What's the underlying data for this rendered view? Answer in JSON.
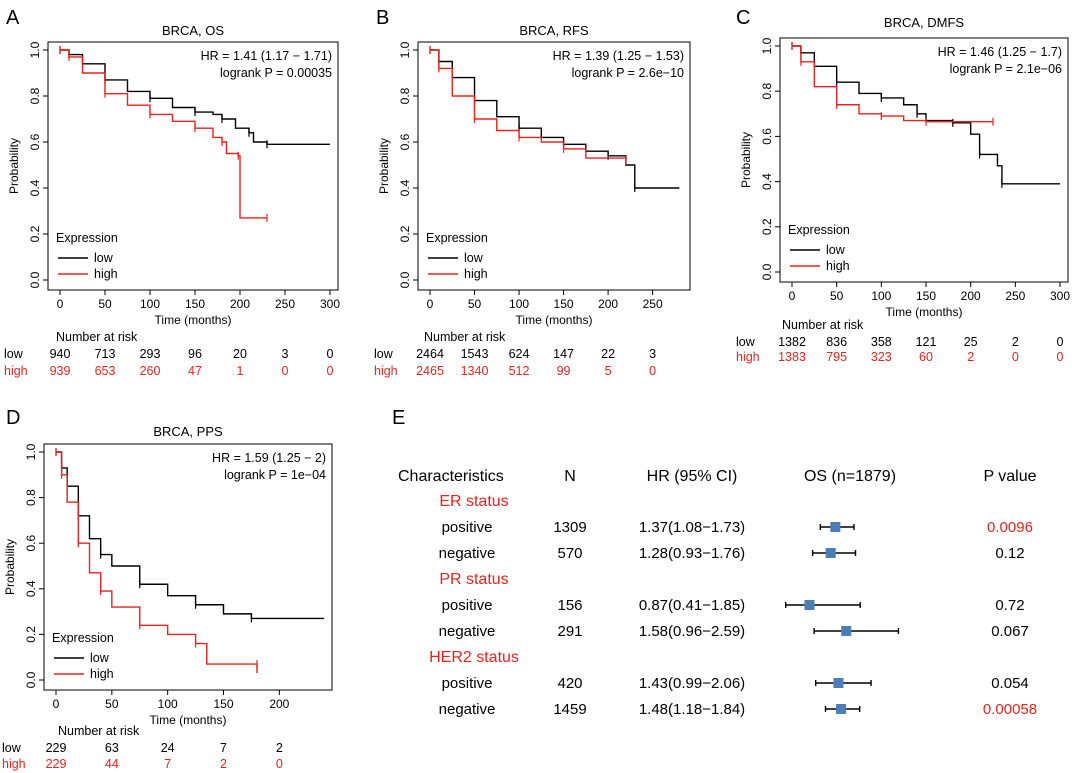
{
  "colors": {
    "low": "#000000",
    "high": "#e8231c",
    "marker": "#4a7eb5"
  },
  "km_panels": [
    {
      "letter": "A",
      "title": "BRCA, OS",
      "hr": "HR = 1.41 (1.17 − 1.71)",
      "logrank": "logrank P = 0.00035",
      "ylabel": "Probability",
      "xlabel": "Time (months)",
      "xticks": [
        0,
        50,
        100,
        150,
        200,
        250,
        300
      ],
      "yticks": [
        0.0,
        0.2,
        0.4,
        0.6,
        0.8,
        1.0
      ],
      "ytick_labels": [
        "0.0",
        "0.2",
        "0.4",
        "0.6",
        "0.8",
        "1.0"
      ],
      "xmax": 300,
      "legend_title": "Expression",
      "legend_low": "low",
      "legend_high": "high",
      "risk_title": "Number at risk",
      "risk_low_label": "low",
      "risk_high_label": "high",
      "risk_low": [
        "940",
        "713",
        "293",
        "96",
        "20",
        "3",
        "0"
      ],
      "risk_high": [
        "939",
        "653",
        "260",
        "47",
        "1",
        "0",
        "0"
      ],
      "series": [
        {
          "name": "low",
          "points": [
            [
              0,
              1
            ],
            [
              10,
              0.98
            ],
            [
              25,
              0.94
            ],
            [
              50,
              0.87
            ],
            [
              75,
              0.82
            ],
            [
              100,
              0.79
            ],
            [
              125,
              0.75
            ],
            [
              150,
              0.73
            ],
            [
              170,
              0.72
            ],
            [
              180,
              0.7
            ],
            [
              195,
              0.66
            ],
            [
              210,
              0.64
            ],
            [
              215,
              0.6
            ],
            [
              230,
              0.59
            ],
            [
              300,
              0.59
            ]
          ]
        },
        {
          "name": "high",
          "points": [
            [
              0,
              1
            ],
            [
              10,
              0.97
            ],
            [
              25,
              0.9
            ],
            [
              50,
              0.81
            ],
            [
              75,
              0.76
            ],
            [
              100,
              0.72
            ],
            [
              125,
              0.69
            ],
            [
              150,
              0.66
            ],
            [
              170,
              0.62
            ],
            [
              180,
              0.6
            ],
            [
              185,
              0.55
            ],
            [
              198,
              0.54
            ],
            [
              200,
              0.27
            ],
            [
              230,
              0.27
            ]
          ]
        }
      ]
    },
    {
      "letter": "B",
      "title": "BRCA, RFS",
      "hr": "HR = 1.39 (1.25 − 1.53)",
      "logrank": "logrank P = 2.6e−10",
      "ylabel": "Probability",
      "xlabel": "Time (months)",
      "xticks": [
        0,
        50,
        100,
        150,
        200,
        250
      ],
      "yticks": [
        0.0,
        0.2,
        0.4,
        0.6,
        0.8,
        1.0
      ],
      "ytick_labels": [
        "0.0",
        "0.2",
        "0.4",
        "0.6",
        "0.8",
        "1.0"
      ],
      "xmax": 283,
      "legend_title": "Expression",
      "legend_low": "low",
      "legend_high": "high",
      "risk_title": "Number at risk",
      "risk_low_label": "low",
      "risk_high_label": "high",
      "risk_low": [
        "2464",
        "1543",
        "624",
        "147",
        "22",
        "3"
      ],
      "risk_high": [
        "2465",
        "1340",
        "512",
        "99",
        "5",
        "0"
      ],
      "series": [
        {
          "name": "low",
          "points": [
            [
              0,
              1
            ],
            [
              10,
              0.95
            ],
            [
              25,
              0.88
            ],
            [
              50,
              0.78
            ],
            [
              75,
              0.71
            ],
            [
              100,
              0.66
            ],
            [
              125,
              0.62
            ],
            [
              150,
              0.59
            ],
            [
              175,
              0.56
            ],
            [
              200,
              0.54
            ],
            [
              220,
              0.5
            ],
            [
              230,
              0.4
            ],
            [
              280,
              0.4
            ]
          ]
        },
        {
          "name": "high",
          "points": [
            [
              0,
              1
            ],
            [
              10,
              0.92
            ],
            [
              25,
              0.8
            ],
            [
              50,
              0.7
            ],
            [
              75,
              0.65
            ],
            [
              100,
              0.62
            ],
            [
              125,
              0.6
            ],
            [
              150,
              0.57
            ],
            [
              175,
              0.53
            ],
            [
              220,
              0.52
            ]
          ]
        }
      ]
    },
    {
      "letter": "C",
      "title": "BRCA, DMFS",
      "hr": "HR = 1.46 (1.25 − 1.7)",
      "logrank": "logrank P = 2.1e−06",
      "ylabel": "Probability",
      "xlabel": "Time (months)",
      "xticks": [
        0,
        50,
        100,
        150,
        200,
        250,
        300
      ],
      "yticks": [
        0.0,
        0.2,
        0.4,
        0.6,
        0.8,
        1.0
      ],
      "ytick_labels": [
        "0.0",
        "0.2",
        "0.4",
        "0.6",
        "0.8",
        "1.0"
      ],
      "xmax": 300,
      "legend_title": "Expression",
      "legend_low": "low",
      "legend_high": "high",
      "risk_title": "Number at risk",
      "risk_low_label": "low",
      "risk_high_label": "high",
      "risk_low": [
        "1382",
        "836",
        "358",
        "121",
        "25",
        "2",
        "0"
      ],
      "risk_high": [
        "1383",
        "795",
        "323",
        "60",
        "2",
        "0",
        "0"
      ],
      "series": [
        {
          "name": "low",
          "points": [
            [
              0,
              1
            ],
            [
              10,
              0.97
            ],
            [
              25,
              0.91
            ],
            [
              50,
              0.84
            ],
            [
              75,
              0.79
            ],
            [
              100,
              0.77
            ],
            [
              125,
              0.74
            ],
            [
              140,
              0.7
            ],
            [
              150,
              0.67
            ],
            [
              180,
              0.66
            ],
            [
              200,
              0.61
            ],
            [
              210,
              0.52
            ],
            [
              230,
              0.47
            ],
            [
              235,
              0.39
            ],
            [
              300,
              0.39
            ]
          ]
        },
        {
          "name": "high",
          "points": [
            [
              0,
              1
            ],
            [
              10,
              0.93
            ],
            [
              25,
              0.82
            ],
            [
              50,
              0.74
            ],
            [
              75,
              0.7
            ],
            [
              100,
              0.69
            ],
            [
              125,
              0.67
            ],
            [
              150,
              0.665
            ],
            [
              200,
              0.665
            ],
            [
              225,
              0.665
            ]
          ]
        }
      ]
    },
    {
      "letter": "D",
      "title": "BRCA, PPS",
      "hr": "HR = 1.59 (1.25 − 2)",
      "logrank": "logrank P = 1e−04",
      "ylabel": "Probability",
      "xlabel": "Time (months)",
      "xticks": [
        0,
        50,
        100,
        150,
        200
      ],
      "yticks": [
        0.0,
        0.2,
        0.4,
        0.6,
        0.8,
        1.0
      ],
      "ytick_labels": [
        "0.0",
        "0.2",
        "0.4",
        "0.6",
        "0.8",
        "1.0"
      ],
      "xmax": 240,
      "legend_title": "Expression",
      "legend_low": "low",
      "legend_high": "high",
      "risk_title": "Number at risk",
      "risk_low_label": "low",
      "risk_high_label": "high",
      "risk_low": [
        "229",
        "63",
        "24",
        "7",
        "2"
      ],
      "risk_high": [
        "229",
        "44",
        "7",
        "2",
        "0"
      ],
      "series": [
        {
          "name": "low",
          "points": [
            [
              0,
              1
            ],
            [
              5,
              0.93
            ],
            [
              10,
              0.85
            ],
            [
              20,
              0.72
            ],
            [
              30,
              0.62
            ],
            [
              40,
              0.55
            ],
            [
              50,
              0.5
            ],
            [
              75,
              0.42
            ],
            [
              100,
              0.37
            ],
            [
              125,
              0.33
            ],
            [
              150,
              0.29
            ],
            [
              175,
              0.27
            ],
            [
              240,
              0.27
            ]
          ]
        },
        {
          "name": "high",
          "points": [
            [
              0,
              1
            ],
            [
              5,
              0.9
            ],
            [
              10,
              0.78
            ],
            [
              20,
              0.6
            ],
            [
              30,
              0.47
            ],
            [
              40,
              0.39
            ],
            [
              50,
              0.32
            ],
            [
              75,
              0.24
            ],
            [
              100,
              0.2
            ],
            [
              125,
              0.16
            ],
            [
              135,
              0.07
            ],
            [
              180,
              0.07
            ],
            [
              180,
              0.03
            ]
          ]
        }
      ]
    }
  ],
  "forest": {
    "letter": "E",
    "headers": {
      "characteristics": "Characteristics",
      "n": "N",
      "hr": "HR (95% CI)",
      "os": "OS (n=1879)",
      "p": "P value"
    },
    "xrange": [
      0.3,
      3.2
    ],
    "groups": [
      {
        "label": "ER status",
        "rows": [
          {
            "label": "positive",
            "n": "1309",
            "hr_text": "1.37(1.08−1.73)",
            "hr": 1.37,
            "lo": 1.08,
            "hi": 1.73,
            "p": "0.0096",
            "significant": true
          },
          {
            "label": "negative",
            "n": "570",
            "hr_text": "1.28(0.93−1.76)",
            "hr": 1.28,
            "lo": 0.93,
            "hi": 1.76,
            "p": "0.12",
            "significant": false
          }
        ]
      },
      {
        "label": "PR status",
        "rows": [
          {
            "label": "positive",
            "n": "156",
            "hr_text": "0.87(0.41−1.85)",
            "hr": 0.87,
            "lo": 0.41,
            "hi": 1.85,
            "p": "0.72",
            "significant": false
          },
          {
            "label": "negative",
            "n": "291",
            "hr_text": "1.58(0.96−2.59)",
            "hr": 1.58,
            "lo": 0.96,
            "hi": 2.59,
            "p": "0.067",
            "significant": false
          }
        ]
      },
      {
        "label": "HER2 status",
        "rows": [
          {
            "label": "positive",
            "n": "420",
            "hr_text": "1.43(0.99−2.06)",
            "hr": 1.43,
            "lo": 0.99,
            "hi": 2.06,
            "p": "0.054",
            "significant": false
          },
          {
            "label": "negative",
            "n": "1459",
            "hr_text": "1.48(1.18−1.84)",
            "hr": 1.48,
            "lo": 1.18,
            "hi": 1.84,
            "p": "0.00058",
            "significant": true
          }
        ]
      }
    ]
  },
  "chart_data": [
    {
      "type": "line",
      "title": "BRCA, OS",
      "xlabel": "Time (months)",
      "ylabel": "Probability",
      "xlim": [
        0,
        300
      ],
      "ylim": [
        0,
        1
      ],
      "series": [
        {
          "name": "low",
          "x": [
            0,
            50,
            100,
            150,
            200,
            230,
            300
          ],
          "values": [
            1,
            0.87,
            0.79,
            0.73,
            0.66,
            0.59,
            0.59
          ]
        },
        {
          "name": "high",
          "x": [
            0,
            50,
            100,
            150,
            180,
            200,
            230
          ],
          "values": [
            1,
            0.81,
            0.72,
            0.66,
            0.6,
            0.27,
            0.27
          ]
        }
      ]
    },
    {
      "type": "line",
      "title": "BRCA, RFS",
      "xlabel": "Time (months)",
      "ylabel": "Probability",
      "xlim": [
        0,
        283
      ],
      "ylim": [
        0,
        1
      ],
      "series": [
        {
          "name": "low",
          "x": [
            0,
            50,
            100,
            150,
            200,
            230,
            280
          ],
          "values": [
            1,
            0.78,
            0.66,
            0.59,
            0.54,
            0.4,
            0.4
          ]
        },
        {
          "name": "high",
          "x": [
            0,
            50,
            100,
            150,
            220
          ],
          "values": [
            1,
            0.7,
            0.62,
            0.57,
            0.52
          ]
        }
      ]
    },
    {
      "type": "line",
      "title": "BRCA, DMFS",
      "xlabel": "Time (months)",
      "ylabel": "Probability",
      "xlim": [
        0,
        300
      ],
      "ylim": [
        0,
        1
      ],
      "series": [
        {
          "name": "low",
          "x": [
            0,
            50,
            100,
            150,
            200,
            235,
            300
          ],
          "values": [
            1,
            0.84,
            0.77,
            0.67,
            0.61,
            0.39,
            0.39
          ]
        },
        {
          "name": "high",
          "x": [
            0,
            50,
            100,
            150,
            225
          ],
          "values": [
            1,
            0.74,
            0.69,
            0.665,
            0.665
          ]
        }
      ]
    },
    {
      "type": "line",
      "title": "BRCA, PPS",
      "xlabel": "Time (months)",
      "ylabel": "Probability",
      "xlim": [
        0,
        240
      ],
      "ylim": [
        0,
        1
      ],
      "series": [
        {
          "name": "low",
          "x": [
            0,
            50,
            100,
            150,
            240
          ],
          "values": [
            1,
            0.5,
            0.37,
            0.29,
            0.27
          ]
        },
        {
          "name": "high",
          "x": [
            0,
            50,
            100,
            135,
            180
          ],
          "values": [
            1,
            0.32,
            0.2,
            0.07,
            0.07
          ]
        }
      ]
    },
    {
      "type": "scatter",
      "title": "OS (n=1879)",
      "categories": [
        "ER positive",
        "ER negative",
        "PR positive",
        "PR negative",
        "HER2 positive",
        "HER2 negative"
      ],
      "values": [
        1.37,
        1.28,
        0.87,
        1.58,
        1.43,
        1.48
      ],
      "lower": [
        1.08,
        0.93,
        0.41,
        0.96,
        0.99,
        1.18
      ],
      "upper": [
        1.73,
        1.76,
        1.85,
        2.59,
        2.06,
        1.84
      ]
    }
  ]
}
